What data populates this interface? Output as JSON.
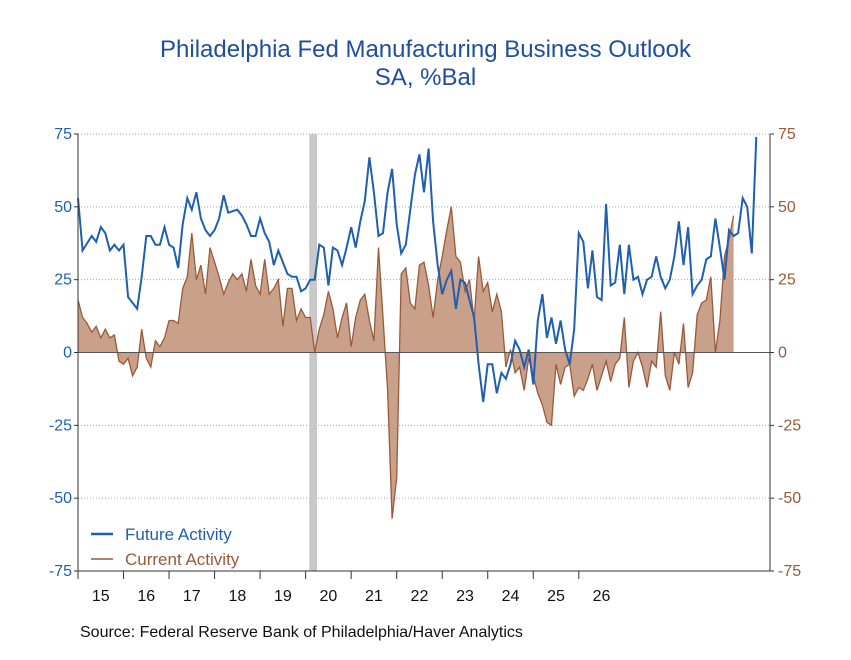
{
  "chart_data": {
    "type": "line",
    "title": "Philadelphia Fed Manufacturing Business Outlook",
    "subtitle": "SA, %Bal",
    "ylim": [
      -75,
      75
    ],
    "y_ticks": [
      "75",
      "50",
      "25",
      "0",
      "-25",
      "-50",
      "-75"
    ],
    "x_ticks": [
      "15",
      "16",
      "17",
      "18",
      "19",
      "20",
      "21",
      "22",
      "23",
      "24",
      "25",
      "26"
    ],
    "recession_shading": [
      2020.08,
      2020.25
    ],
    "grid": true,
    "legend_position": "bottom-left",
    "series": [
      {
        "name": "Future Activity",
        "style": "line",
        "color": "#1f5fb0",
        "points": [
          [
            2015.0,
            53
          ],
          [
            2015.1,
            35
          ],
          [
            2015.3,
            40
          ],
          [
            2015.4,
            38
          ],
          [
            2015.5,
            43
          ],
          [
            2015.6,
            41
          ],
          [
            2015.7,
            35
          ],
          [
            2015.8,
            37
          ],
          [
            2015.9,
            35
          ],
          [
            2016.0,
            37
          ],
          [
            2016.1,
            19
          ],
          [
            2016.3,
            15
          ],
          [
            2016.4,
            26
          ],
          [
            2016.5,
            40
          ],
          [
            2016.6,
            40
          ],
          [
            2016.7,
            37
          ],
          [
            2016.8,
            37
          ],
          [
            2016.9,
            43
          ],
          [
            2017.0,
            37
          ],
          [
            2017.1,
            36
          ],
          [
            2017.2,
            29
          ],
          [
            2017.3,
            44
          ],
          [
            2017.4,
            53
          ],
          [
            2017.5,
            49
          ],
          [
            2017.6,
            55
          ],
          [
            2017.7,
            46
          ],
          [
            2017.8,
            42
          ],
          [
            2017.9,
            40
          ],
          [
            2018.0,
            42
          ],
          [
            2018.1,
            46
          ],
          [
            2018.2,
            54
          ],
          [
            2018.3,
            48
          ],
          [
            2018.5,
            49
          ],
          [
            2018.6,
            47
          ],
          [
            2018.7,
            44
          ],
          [
            2018.8,
            40
          ],
          [
            2018.9,
            40
          ],
          [
            2019.0,
            46
          ],
          [
            2019.1,
            41
          ],
          [
            2019.2,
            38
          ],
          [
            2019.3,
            30
          ],
          [
            2019.4,
            35
          ],
          [
            2019.5,
            31
          ],
          [
            2019.6,
            27
          ],
          [
            2019.7,
            26
          ],
          [
            2019.8,
            26
          ],
          [
            2019.9,
            21
          ],
          [
            2020.0,
            22
          ],
          [
            2020.1,
            25
          ],
          [
            2020.2,
            25
          ],
          [
            2020.3,
            37
          ],
          [
            2020.4,
            36
          ],
          [
            2020.5,
            23
          ],
          [
            2020.6,
            36
          ],
          [
            2020.7,
            35
          ],
          [
            2020.8,
            30
          ],
          [
            2020.9,
            36
          ],
          [
            2021.0,
            43
          ],
          [
            2021.1,
            36
          ],
          [
            2021.2,
            45
          ],
          [
            2021.3,
            52
          ],
          [
            2021.4,
            67
          ],
          [
            2021.5,
            55
          ],
          [
            2021.6,
            40
          ],
          [
            2021.7,
            41
          ],
          [
            2021.8,
            55
          ],
          [
            2021.9,
            63
          ],
          [
            2022.0,
            44
          ],
          [
            2022.1,
            34
          ],
          [
            2022.2,
            37
          ],
          [
            2022.3,
            49
          ],
          [
            2022.4,
            61
          ],
          [
            2022.5,
            68
          ],
          [
            2022.6,
            55
          ],
          [
            2022.7,
            70
          ],
          [
            2022.8,
            45
          ],
          [
            2022.9,
            30
          ],
          [
            2023.0,
            20
          ],
          [
            2023.1,
            25
          ],
          [
            2023.2,
            28
          ],
          [
            2023.3,
            15
          ],
          [
            2023.4,
            25
          ],
          [
            2023.5,
            24
          ],
          [
            2023.6,
            18
          ],
          [
            2023.7,
            12
          ],
          [
            2023.8,
            -4
          ],
          [
            2023.9,
            -17
          ],
          [
            2024.0,
            -4
          ],
          [
            2024.1,
            -4
          ],
          [
            2024.2,
            -14
          ],
          [
            2024.3,
            -7
          ],
          [
            2024.4,
            -9
          ],
          [
            2024.5,
            -4
          ],
          [
            2024.6,
            4
          ],
          [
            2024.7,
            1
          ],
          [
            2024.8,
            -5
          ],
          [
            2024.9,
            1
          ],
          [
            2025.0,
            -11
          ],
          [
            2025.1,
            11
          ],
          [
            2025.2,
            20
          ],
          [
            2025.3,
            5
          ],
          [
            2025.4,
            12
          ],
          [
            2025.5,
            3
          ],
          [
            2025.6,
            11
          ],
          [
            2025.7,
            1
          ],
          [
            2025.8,
            -4
          ],
          [
            2025.9,
            8
          ],
          [
            2026.0,
            41
          ],
          [
            2026.1,
            38
          ],
          [
            2026.2,
            22
          ],
          [
            2026.3,
            35
          ],
          [
            2026.4,
            19
          ],
          [
            2026.5,
            18
          ],
          [
            2026.6,
            51
          ],
          [
            2026.7,
            23
          ],
          [
            2026.8,
            24
          ],
          [
            2026.9,
            37
          ],
          [
            2027.0,
            20
          ],
          [
            2027.1,
            37
          ],
          [
            2027.2,
            25
          ],
          [
            2027.3,
            26
          ],
          [
            2027.4,
            20
          ],
          [
            2027.5,
            25
          ],
          [
            2027.6,
            26
          ],
          [
            2027.7,
            33
          ],
          [
            2027.8,
            26
          ],
          [
            2027.9,
            22
          ],
          [
            2028.0,
            25
          ],
          [
            2028.1,
            33
          ],
          [
            2028.2,
            45
          ],
          [
            2028.3,
            30
          ],
          [
            2028.4,
            43
          ],
          [
            2028.5,
            20
          ],
          [
            2028.6,
            23
          ],
          [
            2028.7,
            25
          ],
          [
            2028.8,
            32
          ],
          [
            2028.9,
            33
          ],
          [
            2029.0,
            46
          ],
          [
            2029.1,
            36
          ],
          [
            2029.2,
            25
          ],
          [
            2029.3,
            42
          ],
          [
            2029.4,
            40
          ],
          [
            2029.5,
            41
          ],
          [
            2029.6,
            53
          ],
          [
            2029.7,
            50
          ],
          [
            2029.8,
            34
          ],
          [
            2029.9,
            74
          ]
        ]
      },
      {
        "name": "Current Activity",
        "style": "area",
        "color": "#9a5a3a",
        "points": [
          [
            2015.0,
            18
          ],
          [
            2015.1,
            12
          ],
          [
            2015.2,
            10
          ],
          [
            2015.3,
            7
          ],
          [
            2015.4,
            9
          ],
          [
            2015.5,
            5
          ],
          [
            2015.6,
            8
          ],
          [
            2015.7,
            5
          ],
          [
            2015.8,
            6
          ],
          [
            2015.9,
            -3
          ],
          [
            2016.0,
            -4
          ],
          [
            2016.1,
            -2
          ],
          [
            2016.2,
            -8
          ],
          [
            2016.3,
            -5
          ],
          [
            2016.4,
            8
          ],
          [
            2016.5,
            -2
          ],
          [
            2016.6,
            -5
          ],
          [
            2016.7,
            4
          ],
          [
            2016.8,
            2
          ],
          [
            2016.9,
            5
          ],
          [
            2017.0,
            11
          ],
          [
            2017.1,
            11
          ],
          [
            2017.2,
            10
          ],
          [
            2017.3,
            22
          ],
          [
            2017.4,
            26
          ],
          [
            2017.5,
            41
          ],
          [
            2017.6,
            25
          ],
          [
            2017.7,
            30
          ],
          [
            2017.8,
            20
          ],
          [
            2017.9,
            36
          ],
          [
            2018.0,
            31
          ],
          [
            2018.1,
            26
          ],
          [
            2018.2,
            20
          ],
          [
            2018.3,
            24
          ],
          [
            2018.4,
            27
          ],
          [
            2018.5,
            25
          ],
          [
            2018.6,
            27
          ],
          [
            2018.7,
            21
          ],
          [
            2018.8,
            32
          ],
          [
            2018.9,
            23
          ],
          [
            2019.0,
            20
          ],
          [
            2019.1,
            32
          ],
          [
            2019.2,
            20
          ],
          [
            2019.3,
            22
          ],
          [
            2019.4,
            25
          ],
          [
            2019.5,
            9
          ],
          [
            2019.6,
            22
          ],
          [
            2019.7,
            22
          ],
          [
            2019.8,
            11
          ],
          [
            2019.9,
            15
          ],
          [
            2020.0,
            12
          ],
          [
            2020.1,
            12
          ],
          [
            2020.2,
            0
          ],
          [
            2020.3,
            8
          ],
          [
            2020.4,
            13
          ],
          [
            2020.5,
            21
          ],
          [
            2020.6,
            15
          ],
          [
            2020.7,
            5
          ],
          [
            2020.8,
            12
          ],
          [
            2020.9,
            17
          ],
          [
            2021.0,
            2
          ],
          [
            2021.1,
            12
          ],
          [
            2021.2,
            18
          ],
          [
            2021.3,
            20
          ],
          [
            2021.4,
            11
          ],
          [
            2021.5,
            4
          ],
          [
            2021.6,
            36
          ],
          [
            2021.7,
            12
          ],
          [
            2021.8,
            -13
          ],
          [
            2021.9,
            -57
          ],
          [
            2022.0,
            -43
          ],
          [
            2022.1,
            27
          ],
          [
            2022.2,
            29
          ],
          [
            2022.3,
            17
          ],
          [
            2022.4,
            15
          ],
          [
            2022.5,
            30
          ],
          [
            2022.6,
            31
          ],
          [
            2022.7,
            23
          ],
          [
            2022.8,
            12
          ],
          [
            2022.9,
            25
          ],
          [
            2023.0,
            33
          ],
          [
            2023.1,
            42
          ],
          [
            2023.2,
            50
          ],
          [
            2023.3,
            33
          ],
          [
            2023.4,
            31
          ],
          [
            2023.5,
            21
          ],
          [
            2023.6,
            25
          ],
          [
            2023.7,
            11
          ],
          [
            2023.8,
            33
          ],
          [
            2023.9,
            21
          ],
          [
            2024.0,
            24
          ],
          [
            2024.1,
            14
          ],
          [
            2024.2,
            20
          ],
          [
            2024.3,
            14
          ],
          [
            2024.4,
            -5
          ],
          [
            2024.5,
            1
          ],
          [
            2024.6,
            -7
          ],
          [
            2024.7,
            -5
          ],
          [
            2024.8,
            -13
          ],
          [
            2024.9,
            -2
          ],
          [
            2025.0,
            -8
          ],
          [
            2025.1,
            -14
          ],
          [
            2025.2,
            -18
          ],
          [
            2025.3,
            -24
          ],
          [
            2025.4,
            -25
          ],
          [
            2025.5,
            -4
          ],
          [
            2025.6,
            -11
          ],
          [
            2025.7,
            -5
          ],
          [
            2025.8,
            -4
          ],
          [
            2025.9,
            -15
          ],
          [
            2026.0,
            -12
          ],
          [
            2026.1,
            -13
          ],
          [
            2026.2,
            -9
          ],
          [
            2026.3,
            -4
          ],
          [
            2026.4,
            -13
          ],
          [
            2026.5,
            -8
          ],
          [
            2026.6,
            -3
          ],
          [
            2026.7,
            -10
          ],
          [
            2026.8,
            -4
          ],
          [
            2026.9,
            -2
          ],
          [
            2027.0,
            12
          ],
          [
            2027.1,
            -12
          ],
          [
            2027.2,
            -3
          ],
          [
            2027.3,
            0
          ],
          [
            2027.4,
            -5
          ],
          [
            2027.5,
            -12
          ],
          [
            2027.6,
            -3
          ],
          [
            2027.7,
            -5
          ],
          [
            2027.8,
            14
          ],
          [
            2027.9,
            -8
          ],
          [
            2028.0,
            -13
          ],
          [
            2028.1,
            0
          ],
          [
            2028.2,
            -4
          ],
          [
            2028.3,
            10
          ],
          [
            2028.4,
            -12
          ],
          [
            2028.5,
            -7
          ],
          [
            2028.6,
            13
          ],
          [
            2028.7,
            17
          ],
          [
            2028.8,
            18
          ],
          [
            2028.9,
            26
          ],
          [
            2029.0,
            0
          ],
          [
            2029.1,
            11
          ],
          [
            2029.2,
            33
          ],
          [
            2029.3,
            39
          ],
          [
            2029.4,
            47
          ]
        ]
      }
    ]
  },
  "source": "Source:  Federal Reserve Bank of Philadelphia/Haver Analytics"
}
